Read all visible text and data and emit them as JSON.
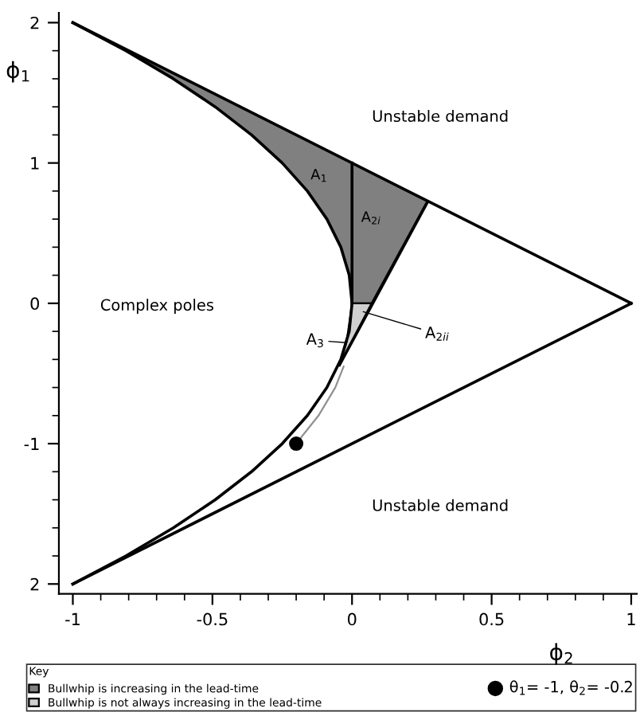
{
  "chart_data": {
    "type": "line",
    "xlabel": "ϕ$_{2}$",
    "ylabel": "ϕ$_{1}$",
    "legend_title": "Key",
    "xlim": [
      -1.05,
      1.02
    ],
    "ylim": [
      -2.07,
      2.07
    ],
    "xticks": [
      -1,
      -0.5,
      0,
      0.5,
      1
    ],
    "yticks": [
      2,
      1,
      0,
      -1,
      {
        "value": -2,
        "label": "2"
      }
    ],
    "grid": false,
    "legend": "bottom",
    "series": [
      {
        "name": "Bullwhip is increasing in the lead-time",
        "type": "area",
        "color": "#808080",
        "x": [
          -1,
          0.27,
          0.07,
          0,
          -0.01,
          -0.04,
          -0.09,
          -0.16,
          -0.25,
          -0.36,
          -0.49,
          -0.64,
          -0.81,
          -1
        ],
        "values": [
          2,
          0.73,
          0,
          0,
          0.2,
          0.4,
          0.6,
          0.8,
          1,
          1.2,
          1.4,
          1.6,
          1.8,
          2
        ]
      },
      {
        "name": "Bullwhip is not always increasing in the lead-time",
        "type": "area",
        "color": "#d0d0d0",
        "x": [
          0,
          0.07,
          -0.045,
          -0.02,
          0
        ],
        "values": [
          0,
          0,
          -0.44,
          -0.28,
          0
        ]
      },
      {
        "color": "#000000",
        "x": [
          -1,
          1
        ],
        "values": [
          2,
          0
        ]
      },
      {
        "color": "#000000",
        "x": [
          -1,
          1
        ],
        "values": [
          -2,
          0
        ]
      },
      {
        "color": "#000000",
        "x": [
          -1,
          -0.81,
          -0.64,
          -0.49,
          -0.36,
          -0.25,
          -0.16,
          -0.09,
          -0.04,
          -0.01,
          0,
          -0.01,
          -0.04,
          -0.09,
          -0.16,
          -0.25,
          -0.36,
          -0.49,
          -0.64,
          -0.81,
          -1
        ],
        "values": [
          2,
          1.8,
          1.6,
          1.4,
          1.2,
          1,
          0.8,
          0.6,
          0.4,
          0.2,
          0,
          -0.2,
          -0.4,
          -0.6,
          -0.8,
          -1,
          -1.2,
          -1.4,
          -1.6,
          -1.8,
          -2
        ]
      },
      {
        "color": "#000000",
        "x": [
          0,
          0
        ],
        "values": [
          0,
          1
        ]
      },
      {
        "color": "#000000",
        "x": [
          0.27,
          -0.045
        ],
        "values": [
          0.72,
          -0.44
        ]
      },
      {
        "color": "#909090",
        "x": [
          -0.2,
          -0.12,
          -0.06,
          -0.03
        ],
        "values": [
          -1,
          -0.8,
          -0.6,
          -0.45
        ]
      },
      {
        "name": "θ$_{1}$= -1, θ$_{2}$= -0.2",
        "type": "scatter",
        "color": "#000000",
        "marker": "circle",
        "x": [
          -0.2
        ],
        "values": [
          -1
        ]
      }
    ],
    "annotations": [
      "Unstable demand",
      "Unstable demand",
      "Complex poles",
      "A$_{1}$",
      "A$_{2i}$",
      {
        "text": "A$_{2ii}$",
        "x": 0.04,
        "y": -0.06
      },
      {
        "text": "A$_{3}$",
        "x": -0.02,
        "y": -0.28
      }
    ]
  }
}
